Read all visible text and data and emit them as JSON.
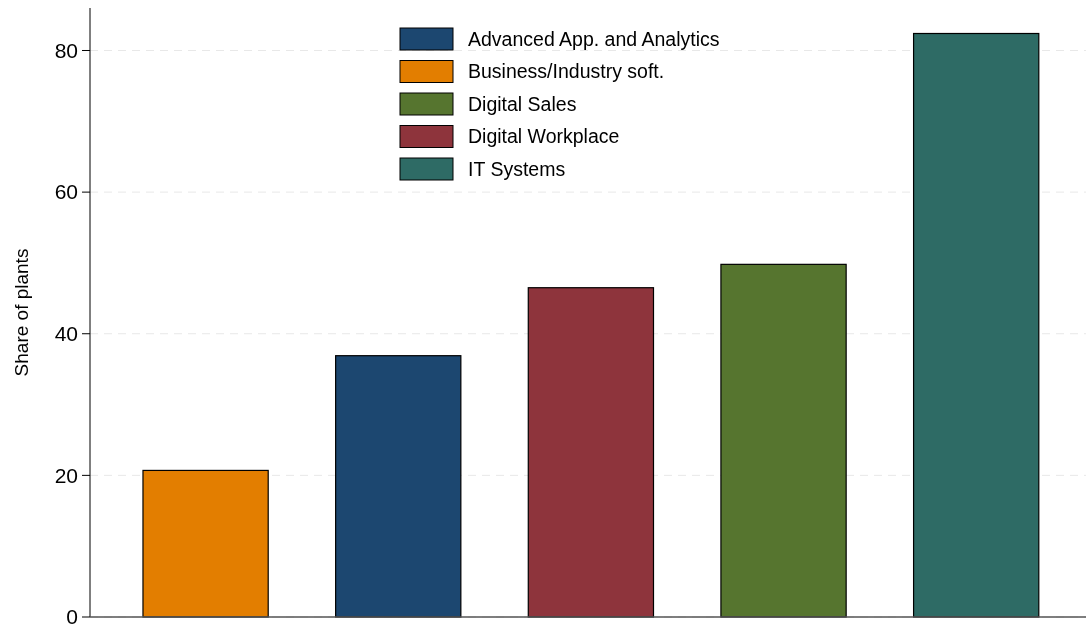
{
  "chart_data": {
    "type": "bar",
    "ylabel": "Share of plants",
    "categories": [
      null,
      null,
      null,
      null,
      null
    ],
    "stacked": true,
    "series": [
      {
        "name": "Advanced App. and Analytics",
        "color": "#1c4770",
        "values": [
          null,
          36.9,
          null,
          null,
          null
        ]
      },
      {
        "name": "Business/Industry soft.",
        "color": "#e37e00",
        "values": [
          20.7,
          null,
          null,
          null,
          null
        ]
      },
      {
        "name": "Digital Sales",
        "color": "#56752f",
        "values": [
          null,
          null,
          null,
          49.8,
          null
        ]
      },
      {
        "name": "Digital Workplace",
        "color": "#8e343c",
        "values": [
          null,
          null,
          46.5,
          null,
          null
        ]
      },
      {
        "name": "IT Systems",
        "color": "#2e6b65",
        "values": [
          null,
          null,
          null,
          null,
          82.4
        ]
      }
    ],
    "ylim": [
      0,
      86
    ],
    "yticks": [
      0,
      20,
      40,
      60,
      80
    ],
    "grid": "y",
    "legend": "top"
  }
}
